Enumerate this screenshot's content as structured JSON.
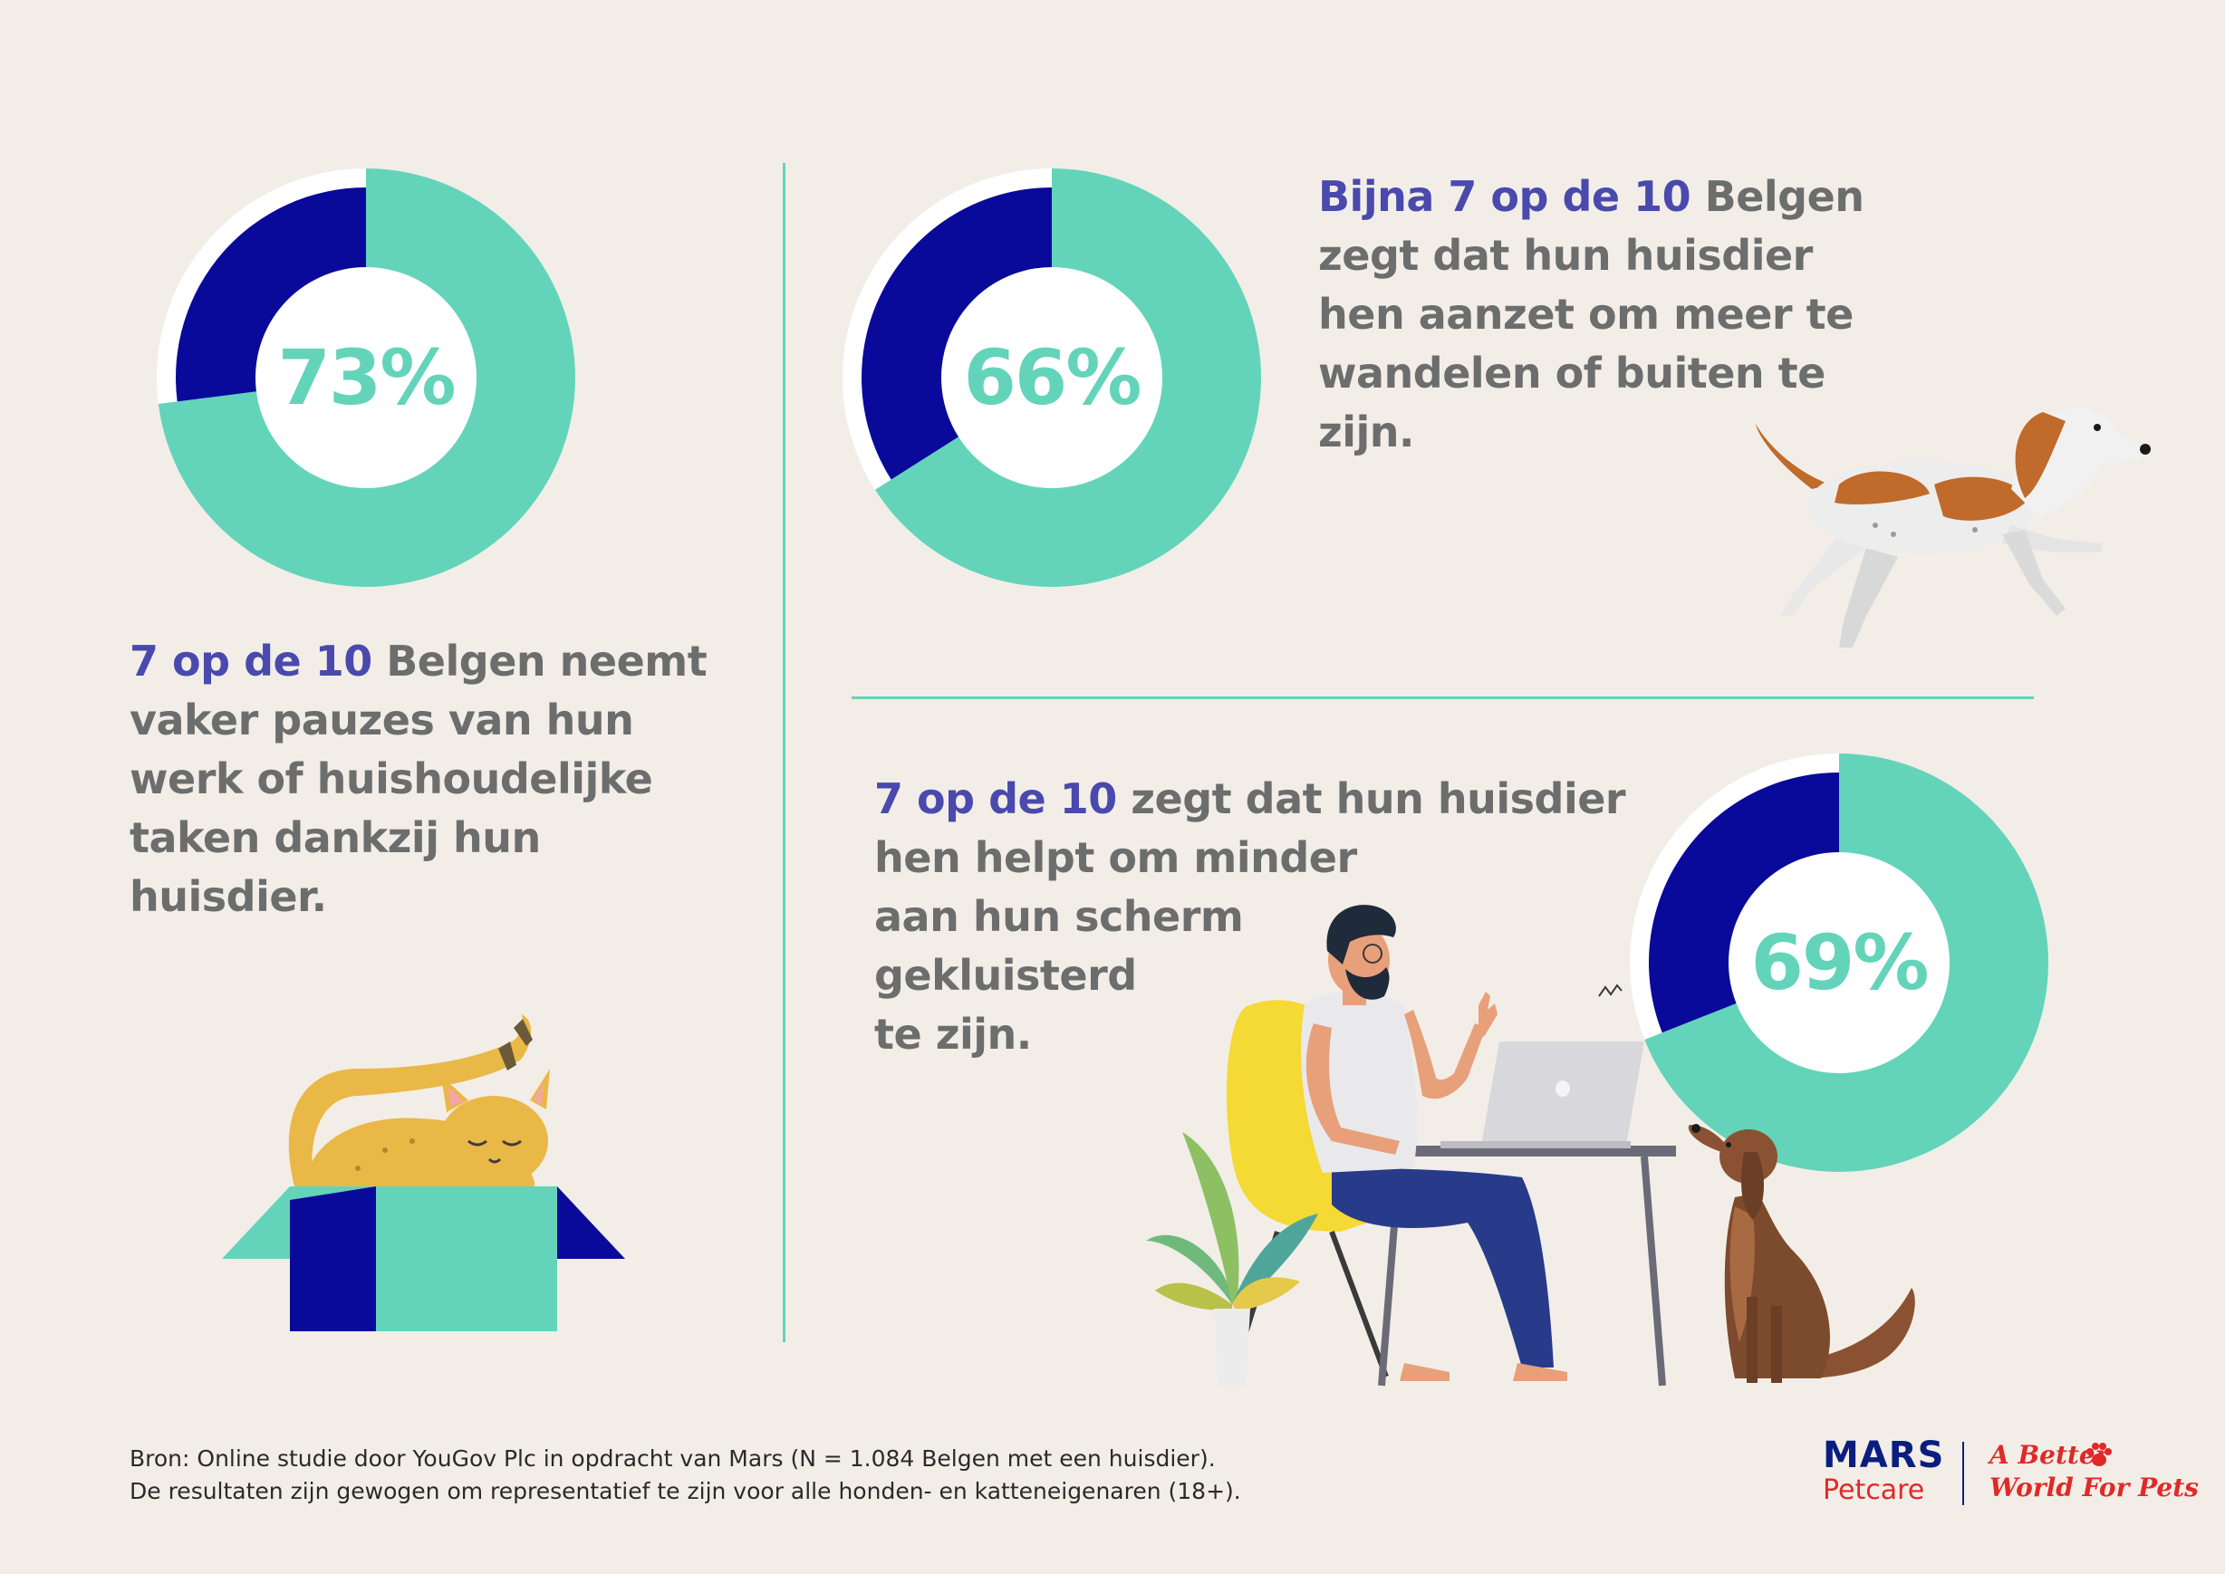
{
  "colors": {
    "background": "#f2eee7",
    "teal": "#63d4ba",
    "navy": "#0a0a9a",
    "highlight_purple": "#4a49ad",
    "text_gray": "#6c6d6d",
    "mars_blue": "#0a1e80",
    "mars_red": "#e02929"
  },
  "donuts": [
    {
      "id": "donut-73",
      "label": "73%",
      "value": 73
    },
    {
      "id": "donut-66",
      "label": "66%",
      "value": 66
    },
    {
      "id": "donut-69",
      "label": "69%",
      "value": 69
    }
  ],
  "stats": {
    "walking": {
      "highlight": "Bijna 7 op de 10",
      "lines": [
        " Belgen",
        "zegt dat hun huisdier",
        "hen aanzet om meer te",
        "wandelen of buiten te",
        "zijn."
      ]
    },
    "breaks": {
      "highlight": "7 op de 10",
      "lines": [
        " Belgen neemt",
        "vaker pauzes van hun",
        "werk of huishoudelijke",
        "taken dankzij hun",
        "huisdier."
      ]
    },
    "screen": {
      "highlight": "7 op de 10",
      "lines": [
        " zegt dat hun huisdier",
        "hen helpt om minder",
        "aan hun scherm",
        "gekluisterd",
        "te zijn."
      ]
    }
  },
  "illustrations": {
    "dog_running": "running-dog-illustration",
    "cat_box": "cat-in-box-illustration",
    "man_laptop": "man-at-laptop-illustration",
    "plant": "potted-plant-illustration",
    "dog_sitting": "sitting-dog-illustration"
  },
  "footer": {
    "line1": "Bron: Online studie door YouGov Plc in opdracht van Mars (N = 1.084 Belgen met een huisdier).",
    "line2": "De resultaten zijn gewogen om representatief te zijn voor alle honden- en katteneigenaren (18+)."
  },
  "logo": {
    "brand": "MARS",
    "sub": "Petcare",
    "tagline_line1": "A Better",
    "tagline_line2": "World For Pets"
  }
}
